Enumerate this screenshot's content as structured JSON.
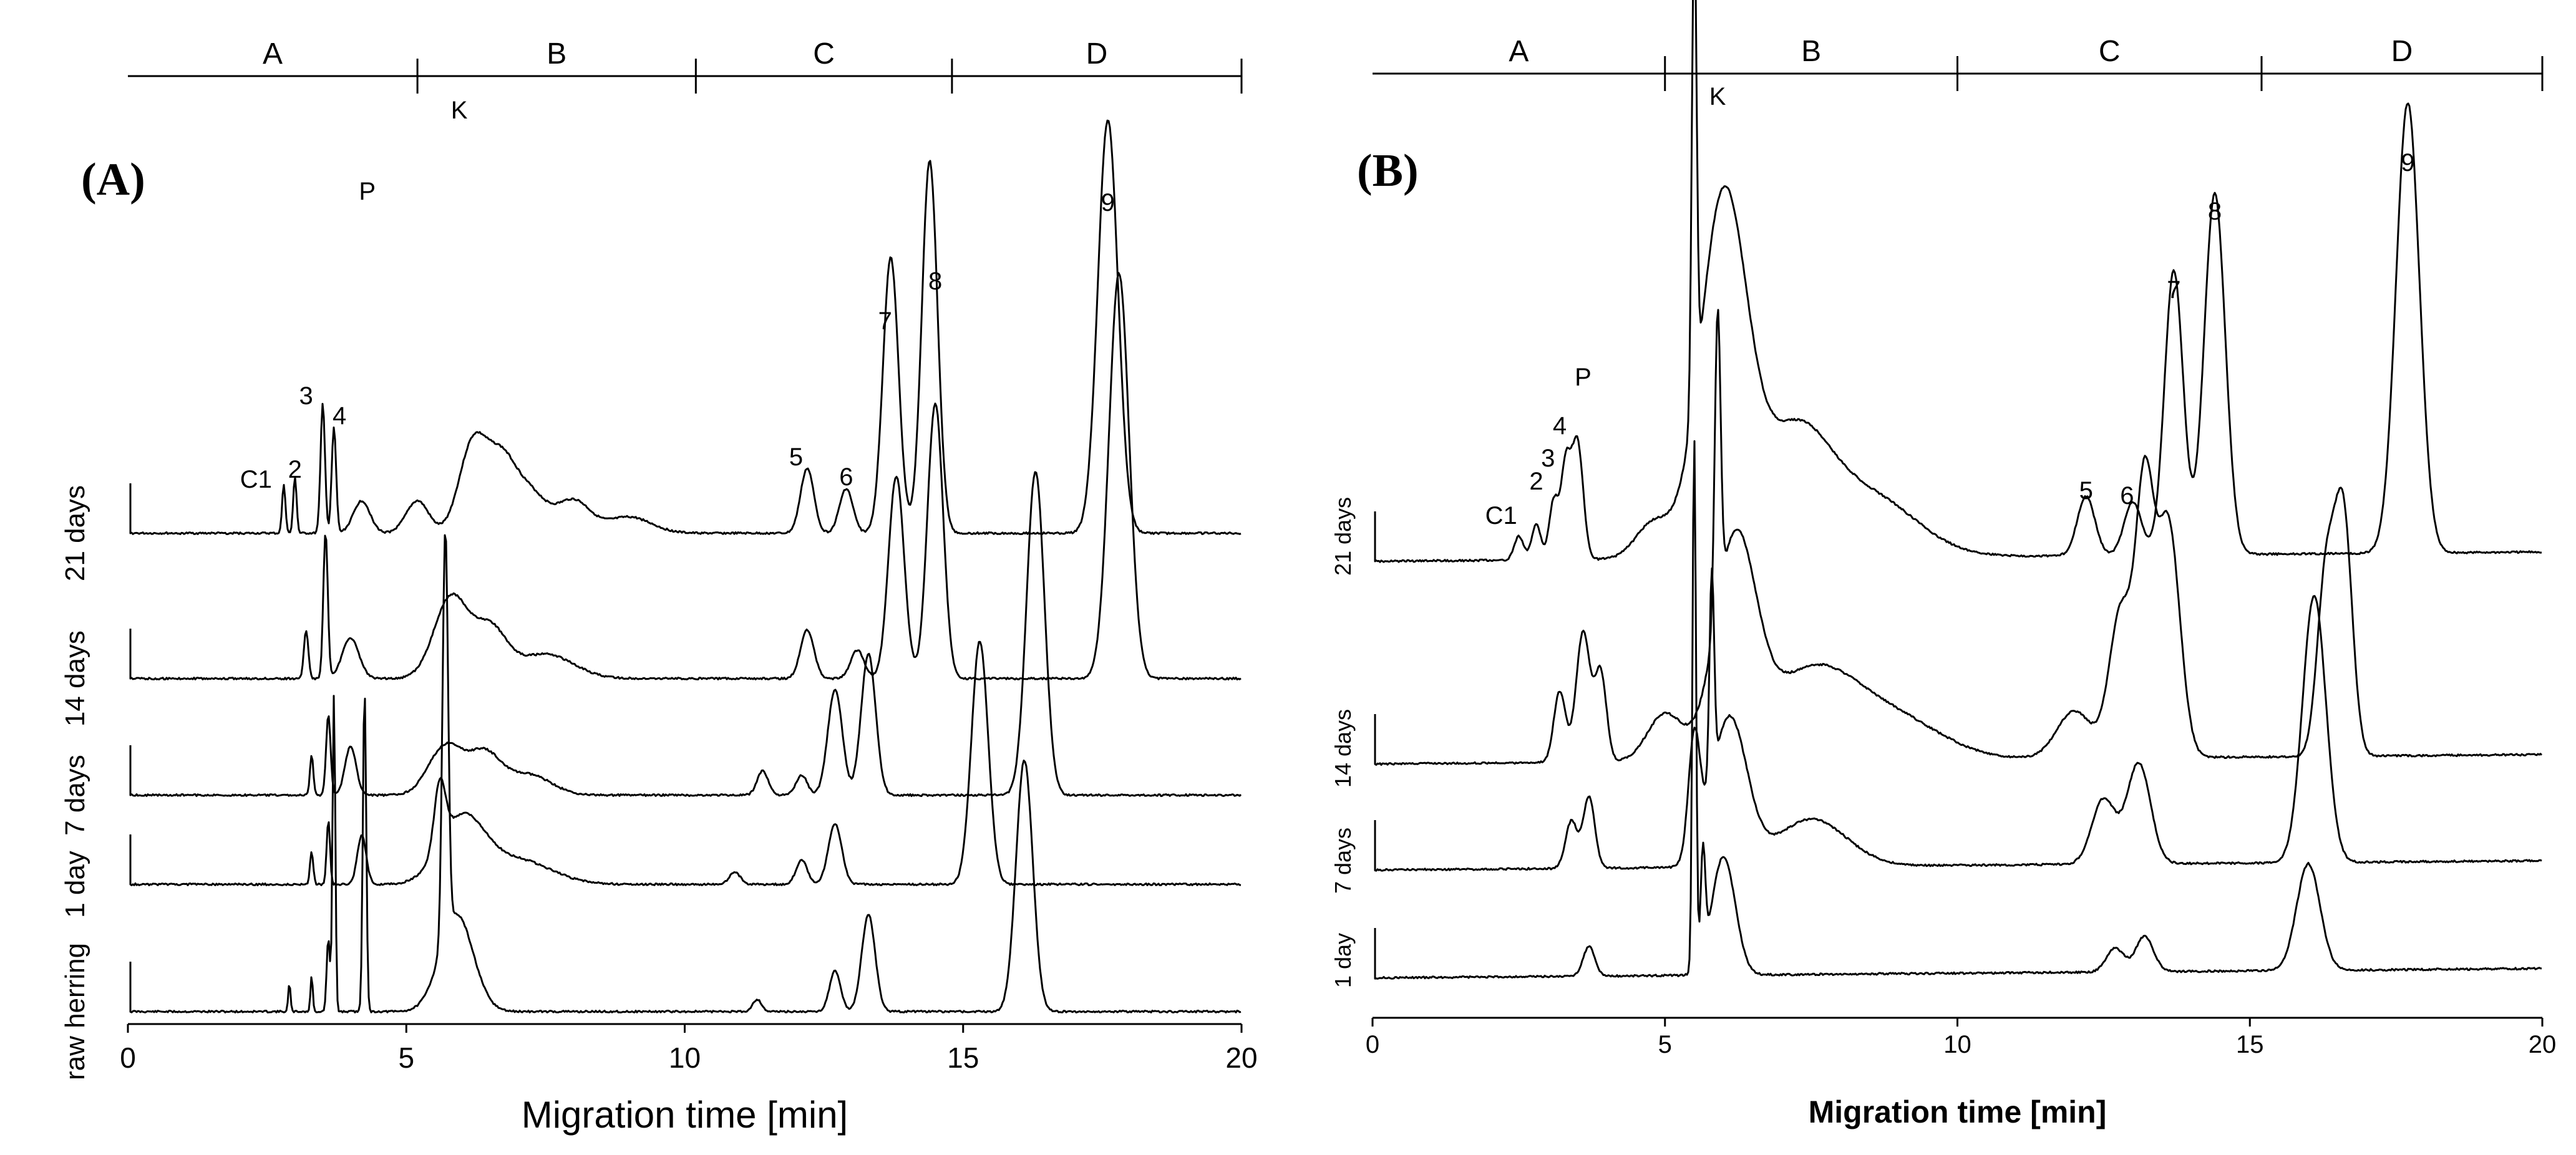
{
  "chart_data": [
    {
      "type": "line",
      "panel_label": "(A)",
      "xlabel": "Migration time [min]",
      "ylabel": "",
      "xlim": [
        0,
        20
      ],
      "x_ticks": [
        0,
        5,
        10,
        15,
        20
      ],
      "segments": [
        {
          "label": "A",
          "start": 0,
          "end": 5.2
        },
        {
          "label": "B",
          "start": 5.2,
          "end": 10.2
        },
        {
          "label": "C",
          "start": 10.2,
          "end": 14.8
        },
        {
          "label": "D",
          "start": 14.8,
          "end": 20
        }
      ],
      "series": [
        {
          "name": "raw herring",
          "peaks": [
            {
              "x": 2.9,
              "h": 0.35,
              "w": 0.02
            },
            {
              "x": 3.3,
              "h": 0.45,
              "w": 0.02
            },
            {
              "x": 3.6,
              "h": 0.9,
              "w": 0.03
            },
            {
              "x": 3.7,
              "h": 3.9,
              "w": 0.025
            },
            {
              "x": 4.25,
              "h": 4.0,
              "w": 0.03
            },
            {
              "x": 5.7,
              "h": 5.0,
              "w": 0.05
            },
            {
              "x": 5.9,
              "h": 1.2,
              "w": 0.3
            },
            {
              "x": 11.3,
              "h": 0.15,
              "w": 0.08
            },
            {
              "x": 12.7,
              "h": 0.5,
              "w": 0.1
            },
            {
              "x": 13.3,
              "h": 1.2,
              "w": 0.12
            },
            {
              "x": 16.1,
              "h": 3.1,
              "w": 0.15
            }
          ]
        },
        {
          "name": "1 day",
          "peaks": [
            {
              "x": 3.3,
              "h": 0.4,
              "w": 0.03
            },
            {
              "x": 3.6,
              "h": 0.8,
              "w": 0.03
            },
            {
              "x": 4.2,
              "h": 0.6,
              "w": 0.08
            },
            {
              "x": 5.6,
              "h": 0.8,
              "w": 0.1
            },
            {
              "x": 6.0,
              "h": 0.8,
              "w": 0.4
            },
            {
              "x": 7.0,
              "h": 0.3,
              "w": 0.6
            },
            {
              "x": 10.9,
              "h": 0.15,
              "w": 0.1
            },
            {
              "x": 12.1,
              "h": 0.3,
              "w": 0.1
            },
            {
              "x": 12.7,
              "h": 0.75,
              "w": 0.12
            },
            {
              "x": 15.3,
              "h": 3.0,
              "w": 0.15
            }
          ]
        },
        {
          "name": "7 days",
          "peaks": [
            {
              "x": 3.3,
              "h": 0.5,
              "w": 0.03
            },
            {
              "x": 3.6,
              "h": 1.0,
              "w": 0.04
            },
            {
              "x": 4.0,
              "h": 0.6,
              "w": 0.1
            },
            {
              "x": 5.7,
              "h": 0.6,
              "w": 0.3
            },
            {
              "x": 6.4,
              "h": 0.5,
              "w": 0.3
            },
            {
              "x": 7.2,
              "h": 0.25,
              "w": 0.4
            },
            {
              "x": 11.4,
              "h": 0.3,
              "w": 0.1
            },
            {
              "x": 12.1,
              "h": 0.25,
              "w": 0.1
            },
            {
              "x": 12.7,
              "h": 1.3,
              "w": 0.13
            },
            {
              "x": 13.3,
              "h": 1.75,
              "w": 0.13
            },
            {
              "x": 16.3,
              "h": 4.0,
              "w": 0.16
            }
          ]
        },
        {
          "name": "14 days",
          "peaks": [
            {
              "x": 3.2,
              "h": 0.6,
              "w": 0.04
            },
            {
              "x": 3.55,
              "h": 1.8,
              "w": 0.04
            },
            {
              "x": 4.0,
              "h": 0.5,
              "w": 0.15
            },
            {
              "x": 5.8,
              "h": 1.0,
              "w": 0.3
            },
            {
              "x": 6.5,
              "h": 0.6,
              "w": 0.3
            },
            {
              "x": 7.5,
              "h": 0.3,
              "w": 0.5
            },
            {
              "x": 12.2,
              "h": 0.6,
              "w": 0.12
            },
            {
              "x": 13.1,
              "h": 0.35,
              "w": 0.12
            },
            {
              "x": 13.8,
              "h": 2.5,
              "w": 0.14
            },
            {
              "x": 14.5,
              "h": 3.4,
              "w": 0.14
            },
            {
              "x": 17.8,
              "h": 5.0,
              "w": 0.18
            }
          ]
        },
        {
          "name": "21 days",
          "peaks": [
            {
              "x": 2.8,
              "h": 0.6,
              "w": 0.03
            },
            {
              "x": 3.0,
              "h": 0.7,
              "w": 0.03
            },
            {
              "x": 3.5,
              "h": 1.6,
              "w": 0.04
            },
            {
              "x": 3.7,
              "h": 1.3,
              "w": 0.04
            },
            {
              "x": 4.2,
              "h": 0.4,
              "w": 0.15
            },
            {
              "x": 5.2,
              "h": 0.4,
              "w": 0.2
            },
            {
              "x": 6.2,
              "h": 1.1,
              "w": 0.25
            },
            {
              "x": 6.7,
              "h": 0.8,
              "w": 0.25
            },
            {
              "x": 7.2,
              "h": 0.5,
              "w": 0.3
            },
            {
              "x": 8.0,
              "h": 0.4,
              "w": 0.3
            },
            {
              "x": 9.0,
              "h": 0.2,
              "w": 0.4
            },
            {
              "x": 12.2,
              "h": 0.8,
              "w": 0.12
            },
            {
              "x": 12.9,
              "h": 0.55,
              "w": 0.12
            },
            {
              "x": 13.7,
              "h": 3.4,
              "w": 0.14
            },
            {
              "x": 14.4,
              "h": 4.6,
              "w": 0.14
            },
            {
              "x": 17.6,
              "h": 5.1,
              "w": 0.18
            }
          ]
        }
      ],
      "row_labels": [
        "raw herring",
        "1 day",
        "7 days",
        "14 days",
        "21 days"
      ],
      "peak_labels": [
        {
          "text": "C1",
          "x": 2.3
        },
        {
          "text": "2",
          "x": 3.0
        },
        {
          "text": "3",
          "x": 3.2
        },
        {
          "text": "4",
          "x": 3.8
        },
        {
          "text": "P",
          "x": 4.3
        },
        {
          "text": "K",
          "x": 5.95
        },
        {
          "text": "5",
          "x": 12.0
        },
        {
          "text": "6",
          "x": 12.9
        },
        {
          "text": "7",
          "x": 13.6
        },
        {
          "text": "8",
          "x": 14.5
        },
        {
          "text": "9",
          "x": 17.6
        }
      ]
    },
    {
      "type": "line",
      "panel_label": "(B)",
      "xlabel": "Migration time [min]",
      "ylabel": "",
      "xlim": [
        0,
        20
      ],
      "x_ticks": [
        0,
        5,
        10,
        15,
        20
      ],
      "segments": [
        {
          "label": "A",
          "start": 0,
          "end": 5
        },
        {
          "label": "B",
          "start": 5,
          "end": 10
        },
        {
          "label": "C",
          "start": 10,
          "end": 15.2
        },
        {
          "label": "D",
          "start": 15.2,
          "end": 20
        }
      ],
      "series": [
        {
          "name": "1 day",
          "peaks": [
            {
              "x": 3.7,
              "h": 0.5,
              "w": 0.1
            },
            {
              "x": 5.5,
              "h": 9.0,
              "w": 0.03
            },
            {
              "x": 5.65,
              "h": 1.8,
              "w": 0.04
            },
            {
              "x": 6.0,
              "h": 2.0,
              "w": 0.2
            },
            {
              "x": 12.7,
              "h": 0.4,
              "w": 0.15
            },
            {
              "x": 13.2,
              "h": 0.6,
              "w": 0.15
            },
            {
              "x": 16.0,
              "h": 1.8,
              "w": 0.2
            }
          ]
        },
        {
          "name": "7 days",
          "peaks": [
            {
              "x": 3.4,
              "h": 0.8,
              "w": 0.1
            },
            {
              "x": 3.7,
              "h": 1.2,
              "w": 0.1
            },
            {
              "x": 5.5,
              "h": 2.0,
              "w": 0.1
            },
            {
              "x": 5.8,
              "h": 3.5,
              "w": 0.04
            },
            {
              "x": 6.1,
              "h": 2.5,
              "w": 0.3
            },
            {
              "x": 7.5,
              "h": 0.8,
              "w": 0.6
            },
            {
              "x": 12.5,
              "h": 1.1,
              "w": 0.2
            },
            {
              "x": 13.1,
              "h": 1.7,
              "w": 0.2
            },
            {
              "x": 16.1,
              "h": 4.5,
              "w": 0.2
            }
          ]
        },
        {
          "name": "14 days",
          "peaks": [
            {
              "x": 3.2,
              "h": 1.2,
              "w": 0.1
            },
            {
              "x": 3.6,
              "h": 2.2,
              "w": 0.12
            },
            {
              "x": 3.9,
              "h": 1.5,
              "w": 0.1
            },
            {
              "x": 5.0,
              "h": 0.8,
              "w": 0.3
            },
            {
              "x": 5.9,
              "h": 5.0,
              "w": 0.05
            },
            {
              "x": 6.2,
              "h": 3.5,
              "w": 0.35
            },
            {
              "x": 7.5,
              "h": 1.5,
              "w": 0.8
            },
            {
              "x": 9.0,
              "h": 0.6,
              "w": 0.8
            },
            {
              "x": 12.0,
              "h": 0.8,
              "w": 0.3
            },
            {
              "x": 12.8,
              "h": 2.5,
              "w": 0.2
            },
            {
              "x": 13.2,
              "h": 4.2,
              "w": 0.15
            },
            {
              "x": 13.6,
              "h": 4.0,
              "w": 0.2
            },
            {
              "x": 16.3,
              "h": 3.0,
              "w": 0.15
            },
            {
              "x": 16.6,
              "h": 4.0,
              "w": 0.15
            }
          ]
        },
        {
          "name": "21 days",
          "peaks": [
            {
              "x": 2.5,
              "h": 0.4,
              "w": 0.08
            },
            {
              "x": 2.8,
              "h": 0.6,
              "w": 0.08
            },
            {
              "x": 3.1,
              "h": 1.0,
              "w": 0.08
            },
            {
              "x": 3.3,
              "h": 1.5,
              "w": 0.08
            },
            {
              "x": 3.5,
              "h": 2.0,
              "w": 0.1
            },
            {
              "x": 4.8,
              "h": 0.6,
              "w": 0.3
            },
            {
              "x": 5.5,
              "h": 8.0,
              "w": 0.04
            },
            {
              "x": 6.0,
              "h": 6.0,
              "w": 0.4
            },
            {
              "x": 7.2,
              "h": 2.0,
              "w": 0.6
            },
            {
              "x": 8.5,
              "h": 1.0,
              "w": 0.8
            },
            {
              "x": 12.2,
              "h": 1.0,
              "w": 0.15
            },
            {
              "x": 13.0,
              "h": 0.9,
              "w": 0.15
            },
            {
              "x": 13.7,
              "h": 4.8,
              "w": 0.16
            },
            {
              "x": 14.4,
              "h": 6.1,
              "w": 0.18
            },
            {
              "x": 17.7,
              "h": 7.6,
              "w": 0.2
            }
          ]
        }
      ],
      "row_labels": [
        "1 day",
        "7 days",
        "14 days",
        "21 days"
      ],
      "peak_labels": [
        {
          "text": "C1",
          "x": 2.2
        },
        {
          "text": "2",
          "x": 2.8
        },
        {
          "text": "3",
          "x": 3.0
        },
        {
          "text": "4",
          "x": 3.2
        },
        {
          "text": "P",
          "x": 3.6
        },
        {
          "text": "K",
          "x": 5.9
        },
        {
          "text": "5",
          "x": 12.2
        },
        {
          "text": "6",
          "x": 12.9
        },
        {
          "text": "7",
          "x": 13.7
        },
        {
          "text": "8",
          "x": 14.4
        },
        {
          "text": "9",
          "x": 17.7
        }
      ]
    }
  ]
}
